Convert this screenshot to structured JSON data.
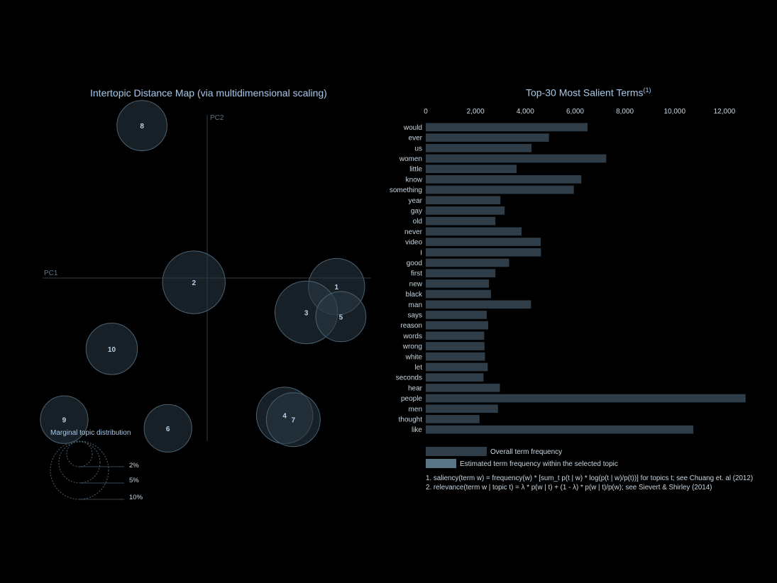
{
  "left_panel": {
    "title": "Intertopic Distance Map (via multidimensional scaling)",
    "axis_x_label": "PC1",
    "axis_y_label": "PC2",
    "marginal": {
      "title": "Marginal topic distribution",
      "levels": [
        "2%",
        "5%",
        "10%"
      ]
    }
  },
  "right_panel": {
    "title": "Top-30 Most Salient Terms",
    "title_superscript": "(1)",
    "legend": {
      "overall": "Overall term frequency",
      "estimated": "Estimated term frequency within the selected topic"
    },
    "footnotes": [
      "1. saliency(term w) = frequency(w) * [sum_t p(t | w) * log(p(t | w)/p(t))] for topics t; see Chuang et. al (2012)",
      "2. relevance(term w | topic t) = λ * p(w | t) + (1 - λ) * p(w | t)/p(w); see Sievert & Shirley (2014)"
    ]
  },
  "colors": {
    "background": "#000000",
    "bar": "#2e3d47",
    "estimated_bar": "#5a7585",
    "circle_fill": "#2a3a45",
    "circle_stroke": "#4a6272",
    "text": "#c8d6e0",
    "title": "#a9c8e8"
  },
  "chart_data": [
    {
      "type": "scatter",
      "name": "intertopic-distance-map",
      "axes": [
        "PC1",
        "PC2"
      ],
      "topics": [
        {
          "label": "1",
          "x": 0.3,
          "y": -0.02,
          "size": 0.045
        },
        {
          "label": "2",
          "x": -0.03,
          "y": -0.01,
          "size": 0.05
        },
        {
          "label": "3",
          "x": 0.23,
          "y": -0.08,
          "size": 0.05
        },
        {
          "label": "4",
          "x": 0.18,
          "y": -0.32,
          "size": 0.045
        },
        {
          "label": "5",
          "x": 0.31,
          "y": -0.09,
          "size": 0.04
        },
        {
          "label": "6",
          "x": -0.09,
          "y": -0.35,
          "size": 0.038
        },
        {
          "label": "7",
          "x": 0.2,
          "y": -0.33,
          "size": 0.043
        },
        {
          "label": "8",
          "x": -0.15,
          "y": 0.355,
          "size": 0.04
        },
        {
          "label": "9",
          "x": -0.33,
          "y": -0.33,
          "size": 0.038
        },
        {
          "label": "10",
          "x": -0.22,
          "y": -0.165,
          "size": 0.041
        }
      ],
      "xlim": [
        -0.38,
        0.38
      ],
      "ylim": [
        -0.38,
        0.38
      ]
    },
    {
      "type": "bar",
      "orientation": "horizontal",
      "name": "top-30-salient-terms",
      "categories": [
        "would",
        "ever",
        "us",
        "women",
        "little",
        "know",
        "something",
        "year",
        "gay",
        "old",
        "never",
        "video",
        "I",
        "good",
        "first",
        "new",
        "black",
        "man",
        "says",
        "reason",
        "words",
        "wrong",
        "white",
        "let",
        "seconds",
        "hear",
        "people",
        "men",
        "thought",
        "like"
      ],
      "values": [
        6500,
        4950,
        4250,
        7250,
        3650,
        6250,
        5950,
        3000,
        3170,
        2800,
        3850,
        4620,
        4630,
        3350,
        2800,
        2540,
        2620,
        4230,
        2450,
        2510,
        2350,
        2360,
        2380,
        2490,
        2320,
        2980,
        12850,
        2900,
        2160,
        10750
      ],
      "xticks": [
        "0",
        "2,000",
        "4,000",
        "6,000",
        "8,000",
        "10,000",
        "12,000"
      ],
      "xlim": [
        0,
        13000
      ]
    }
  ]
}
